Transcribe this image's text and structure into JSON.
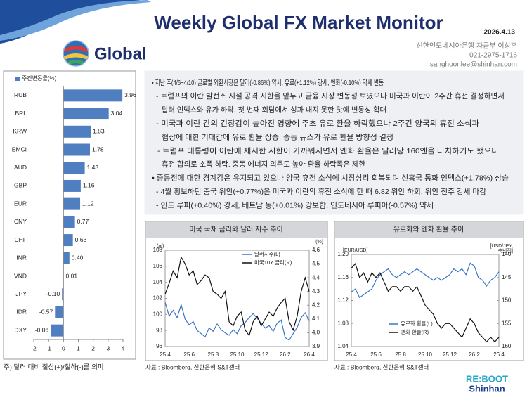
{
  "header": {
    "title": "Weekly Global FX Market Monitor",
    "date": "2026.4.13"
  },
  "section": {
    "title": "Global",
    "contact": [
      "신한인도네시아은행 자금부 이상훈",
      "021-2975-1716",
      "sanghoonlee@shinhan.com"
    ]
  },
  "commentary": [
    "• 지난 주(4/6~4/10) 글로벌 외환시장은 달러(-0.86%) 약세, 유로(+1.12%) 강세, 엔화(-0.10%) 약세 변동",
    "- 트럼프의 이란 발전소 시설 공격 시한을 앞두고 금융 시장 변동성 보였으나 미국과 이란이 2주간 휴전 결정하면서",
    "달러 인덱스와 유가 하락. 첫 번째 회담에서 성과 내지 못한 탓에 변동성 확대",
    "- 미국과 이란 간의 긴장감이 높아진 영향에 주초 유로 환율 하락했으나 2주간 양국의 휴전 소식과",
    "협상에 대한 기대감에 유로 환율 상승. 중동 뉴스가 유로 환율 방향성 결정",
    "- 트럼프 대통령이 이란에 제시한 시한이 가까워지면서 엔화 환율은 달러당 160엔을 터치하기도 했으나",
    "휴전 합의로 소폭 하락. 중동 에너지 의존도 높아 환율 하락폭은 제한",
    "• 중동전에 대한 경계감은 유지되고 있으나 양국 휴전 소식에 시장심리 회복되며 신흥국 통화 인덱스(+1.78%) 상승",
    "- 4월 횡보하던 중국 위안(+0.77%)은 미국과 이란의 휴전 소식에 한 때 6.82 위안 하회. 위안 전주 강세 마감",
    "- 인도 루피(+0.40%) 강세, 베트남 동(+0.01%) 강보합, 인도네시아 루피아(-0.57%) 약세"
  ],
  "chart_data": [
    {
      "type": "bar",
      "orientation": "horizontal",
      "categories": [
        "RUB",
        "BRL",
        "KRW",
        "EMCI",
        "AUD",
        "GBP",
        "EUR",
        "CNY",
        "CHF",
        "INR",
        "VND",
        "JPY",
        "IDR",
        "DXY"
      ],
      "series": [
        {
          "name": "주간변동률(%)",
          "color": "#4f7fc0",
          "values": [
            3.96,
            3.04,
            1.83,
            1.78,
            1.43,
            1.16,
            1.12,
            0.77,
            0.63,
            0.4,
            0.01,
            -0.1,
            -0.57,
            -0.86
          ],
          "value_labels": [
            "3.96",
            "3.04",
            "1.83",
            "1.78",
            "1.43",
            "1.16",
            "1.12",
            "0.77",
            "0.63",
            "0.40",
            "0.01",
            "-0.10",
            "-0.57",
            "-0.86"
          ]
        }
      ],
      "xlim": [
        -2,
        4
      ],
      "xticks": [
        -2,
        -1,
        0,
        1,
        2,
        3,
        4
      ],
      "footnote": "주) 달러 대비 절상(+)/절하(-)를 의미"
    },
    {
      "type": "line",
      "title": "미국 국채 금리와 달러 지수 추이",
      "y_unit": "(pt)",
      "y2_unit": [
        "(%)"
      ],
      "categories": [
        "25.4",
        null,
        null,
        null,
        null,
        null,
        "25.6",
        null,
        null,
        null,
        null,
        null,
        "25.8",
        null,
        null,
        null,
        null,
        null,
        "25.10",
        null,
        null,
        null,
        null,
        null,
        "25.12",
        null,
        null,
        null,
        null,
        null,
        "26.2",
        null,
        null,
        null,
        null,
        null,
        "26.4"
      ],
      "series": [
        {
          "name": "달러지수(L)",
          "color": "#3a75c4",
          "values": [
            101.5,
            99.8,
            100.5,
            99.6,
            101.2,
            99.4,
            98.7,
            99.1,
            98.0,
            97.6,
            97.2,
            98.3,
            97.9,
            98.8,
            98.1,
            97.7,
            97.4,
            98.1,
            97.6,
            98.6,
            99.0,
            99.6,
            100.1,
            99.5,
            98.9,
            98.3,
            98.6,
            97.9,
            98.9,
            99.3,
            97.1,
            96.8,
            97.6,
            98.4,
            99.6,
            100.2,
            99.2
          ]
        },
        {
          "name": "미국10Y 금리(R)",
          "color": "#111111",
          "axis": "y2",
          "values": [
            4.28,
            4.36,
            4.45,
            4.4,
            4.55,
            4.5,
            4.42,
            4.45,
            4.35,
            4.38,
            4.42,
            4.4,
            4.3,
            4.28,
            4.25,
            4.3,
            4.08,
            4.05,
            4.12,
            4.15,
            4.02,
            3.98,
            4.08,
            4.12,
            4.05,
            4.1,
            4.15,
            4.12,
            4.18,
            4.22,
            4.25,
            4.08,
            4.02,
            4.12,
            4.3,
            4.4,
            4.3
          ]
        }
      ],
      "ylim": [
        96,
        108
      ],
      "yticks": [
        96,
        98,
        100,
        102,
        104,
        106,
        108
      ],
      "y2lim": [
        3.9,
        4.6
      ],
      "y2ticks": [
        3.9,
        {
          "value": 4,
          "label": "4.0"
        },
        4.1,
        4.2,
        4.3,
        4.4,
        4.5,
        4.6
      ],
      "legend": "upper right",
      "source": "자료 : Bloomberg, 신한은행 S&T센터"
    },
    {
      "type": "line",
      "title": "유로화와 엔화 환율 추이",
      "y_unit": "[EUR/USD]",
      "y2_unit": [
        "[USD/JPY,",
        "축반전]"
      ],
      "categories": [
        "25.4",
        null,
        null,
        null,
        null,
        null,
        "25.6",
        null,
        null,
        null,
        null,
        null,
        "25.8",
        null,
        null,
        null,
        null,
        null,
        "25.10",
        null,
        null,
        null,
        null,
        null,
        "25.12",
        null,
        null,
        null,
        null,
        null,
        "26.2",
        null,
        null,
        null,
        null,
        null,
        "26.4"
      ],
      "series": [
        {
          "name": "유로화 환율(L)",
          "color": "#3a75c4",
          "values": [
            1.135,
            1.14,
            1.125,
            1.13,
            1.135,
            1.14,
            1.155,
            1.165,
            1.17,
            1.175,
            1.165,
            1.16,
            1.165,
            1.17,
            1.165,
            1.17,
            1.175,
            1.17,
            1.165,
            1.16,
            1.155,
            1.16,
            1.155,
            1.16,
            1.165,
            1.175,
            1.17,
            1.175,
            1.165,
            1.185,
            1.18,
            1.16,
            1.155,
            1.145,
            1.155,
            1.16,
            1.17
          ]
        },
        {
          "name": "엔화 환율(R)",
          "color": "#111111",
          "axis": "y2",
          "values": [
            143,
            142,
            145,
            144,
            146,
            144,
            145,
            144,
            146,
            148,
            147,
            147,
            148,
            147,
            147,
            148,
            147,
            149,
            151,
            152,
            153,
            155,
            156,
            155,
            155,
            156,
            157,
            158,
            156,
            154,
            155,
            157,
            158,
            159,
            158,
            159,
            158
          ]
        }
      ],
      "ylim": [
        1.04,
        1.2
      ],
      "yticks": [
        1.04,
        1.08,
        1.12,
        1.16,
        {
          "value": 1.2,
          "label": "1.20"
        }
      ],
      "y2lim": [
        160,
        140
      ],
      "y2ticks": [
        140,
        145,
        150,
        155,
        160
      ],
      "legend": "lower center",
      "source": "자료 : Bloomberg, 신한은행 S&T센터"
    }
  ],
  "logo": {
    "line1": "RE:BOOT",
    "line2": "Shinhan"
  }
}
